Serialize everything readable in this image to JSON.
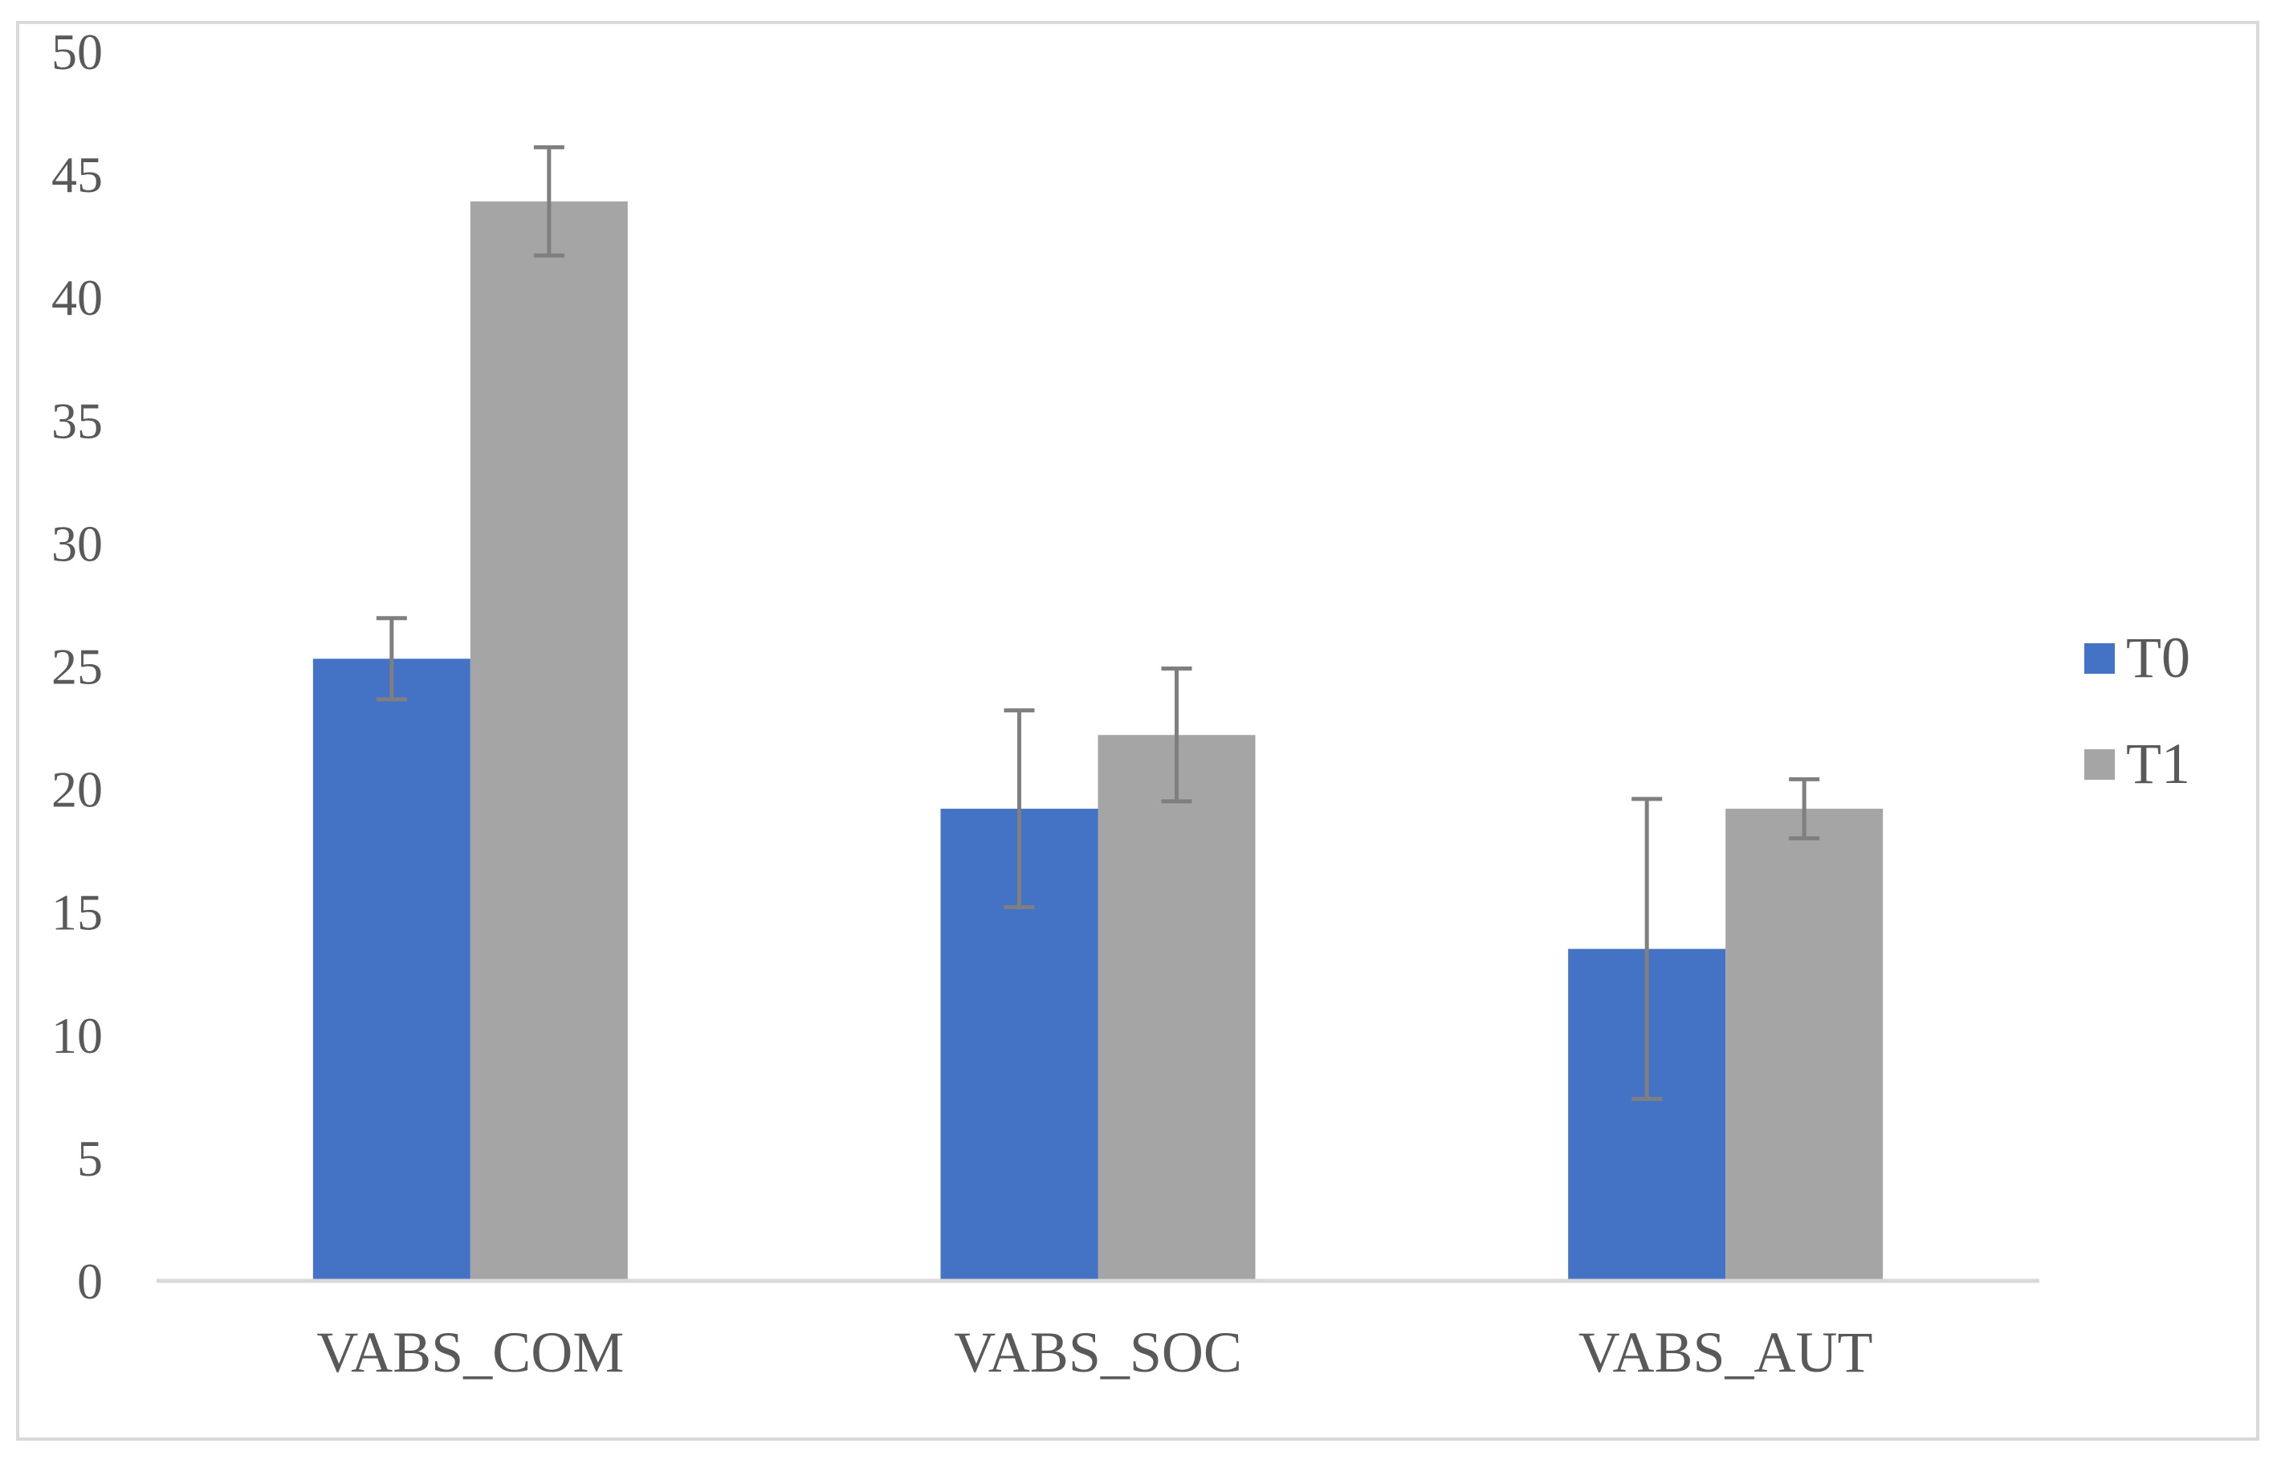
{
  "chart_data": {
    "type": "bar",
    "categories": [
      "VABS_COM",
      "VABS_SOC",
      "VABS_AUT"
    ],
    "series": [
      {
        "name": "T0",
        "color": "#4472c4",
        "values": [
          25.3,
          19.2,
          13.5
        ],
        "error": [
          1.65,
          4.0,
          6.1
        ]
      },
      {
        "name": "T1",
        "color": "#a5a5a5",
        "values": [
          43.9,
          22.2,
          19.2
        ],
        "error": [
          2.2,
          2.7,
          1.2
        ]
      }
    ],
    "ylim": [
      0,
      50
    ],
    "yticks": [
      "0",
      "5",
      "10",
      "15",
      "20",
      "25",
      "30",
      "35",
      "40",
      "45",
      "50"
    ],
    "grid": false,
    "legend": "right",
    "error_bar_color": "#7f7f7f"
  }
}
